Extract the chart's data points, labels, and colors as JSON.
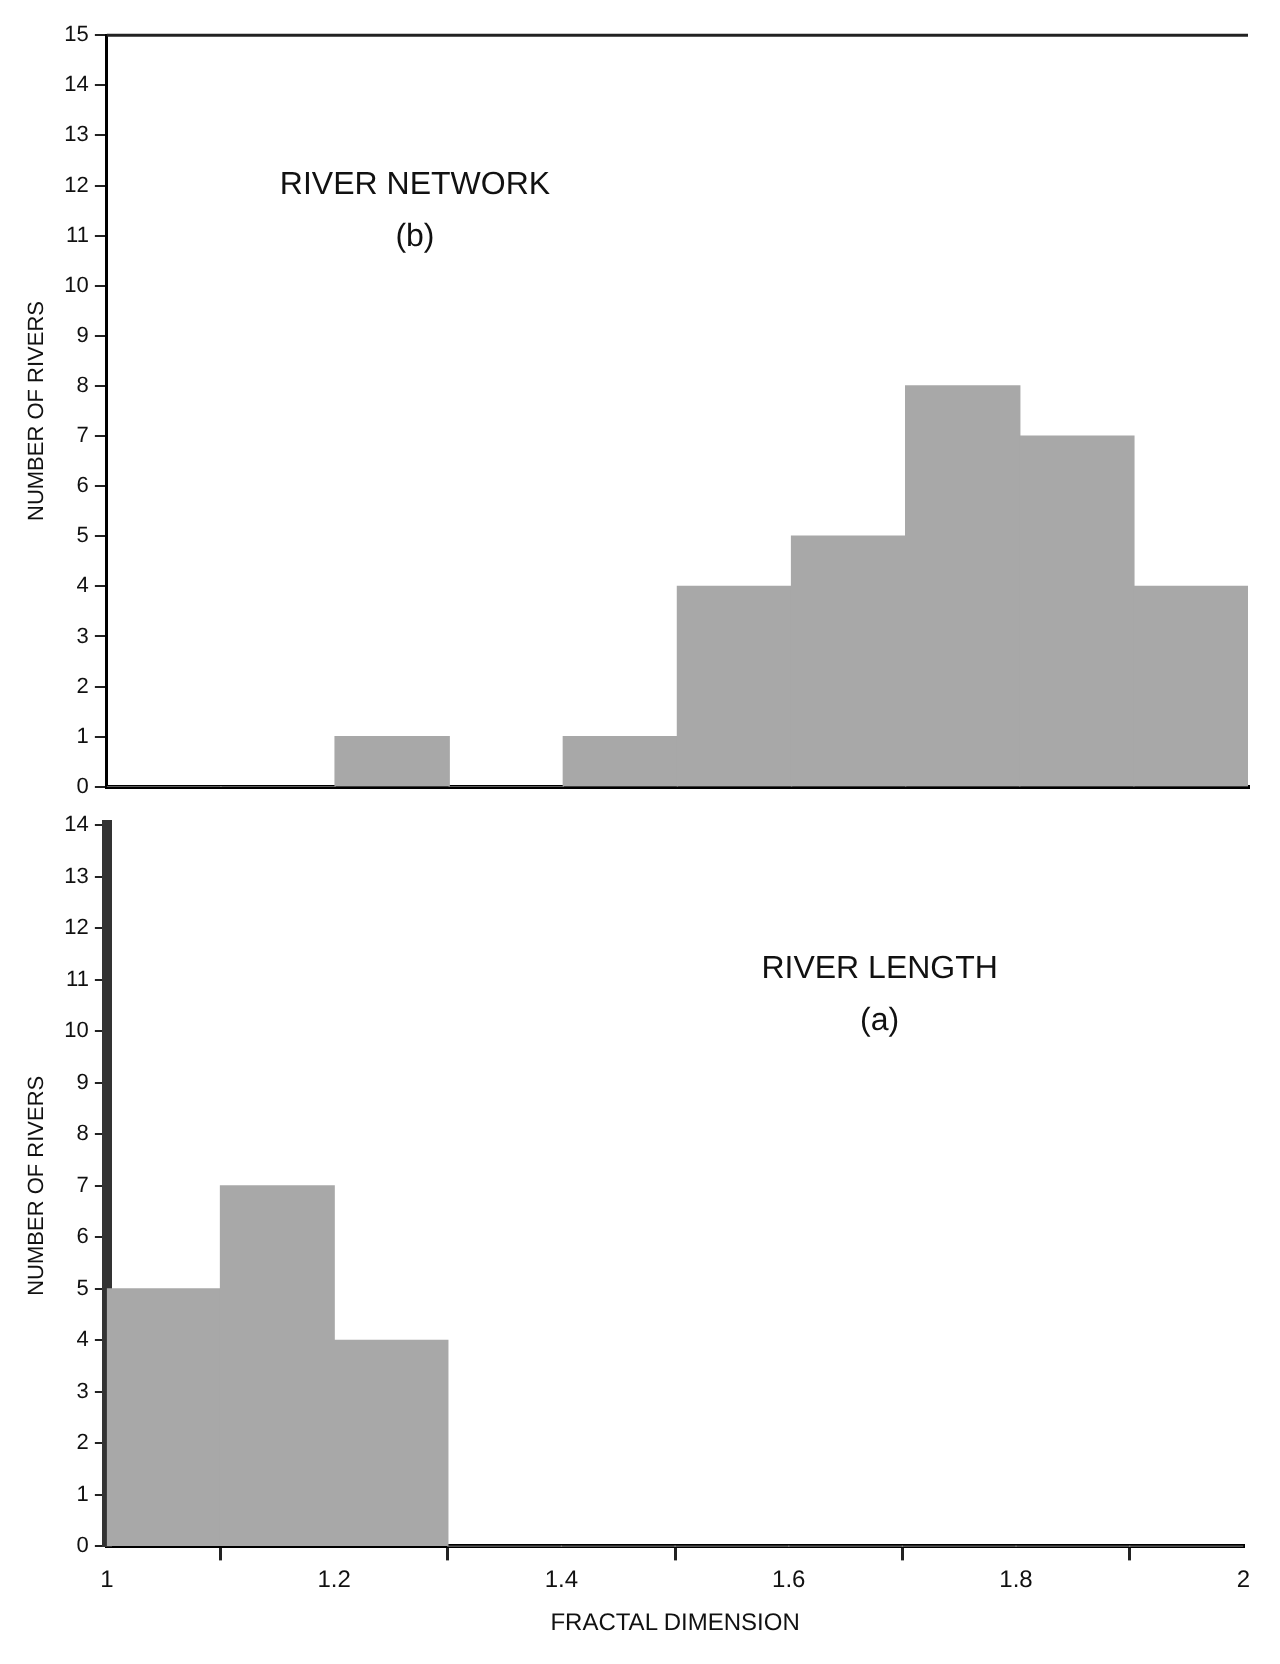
{
  "chart_data": [
    {
      "type": "histogram",
      "annotations": [
        "RIVER NETWORK",
        "(b)"
      ],
      "ylabel": "NUMBER OF RIVERS",
      "bins": [
        1,
        1.1,
        1.2,
        1.3,
        1.4,
        1.5,
        1.6,
        1.7,
        1.8,
        1.9,
        2
      ],
      "values": [
        0,
        0,
        1,
        0,
        1,
        4,
        5,
        8,
        7,
        4
      ],
      "color": "#a8a8a8",
      "xlim": [
        1,
        2
      ],
      "ylim": [
        0,
        15
      ],
      "yticks": [
        0,
        1,
        2,
        3,
        4,
        5,
        6,
        7,
        8,
        9,
        10,
        11,
        12,
        13,
        14,
        15
      ],
      "tick_labels": "y",
      "grid": false,
      "legend": false
    },
    {
      "type": "histogram",
      "annotations": [
        "RIVER LENGTH",
        "(a)"
      ],
      "ylabel": "NUMBER OF RIVERS",
      "xlabel": "FRACTAL DIMENSION",
      "bins": [
        1,
        1.1,
        1.2,
        1.3,
        1.4,
        1.5,
        1.6,
        1.7,
        1.8,
        1.9,
        2
      ],
      "values": [
        5,
        7,
        4,
        0,
        0,
        0,
        0,
        0,
        0,
        0
      ],
      "color": "#a8a8a8",
      "xlim": [
        1,
        2
      ],
      "xticks": [
        1,
        1.2,
        1.4,
        1.6,
        1.8,
        2
      ],
      "ylim": [
        0,
        14
      ],
      "yticks": [
        0,
        1,
        2,
        3,
        4,
        5,
        6,
        7,
        8,
        9,
        10,
        11,
        12,
        13,
        14
      ],
      "grid": false,
      "legend": false
    }
  ]
}
